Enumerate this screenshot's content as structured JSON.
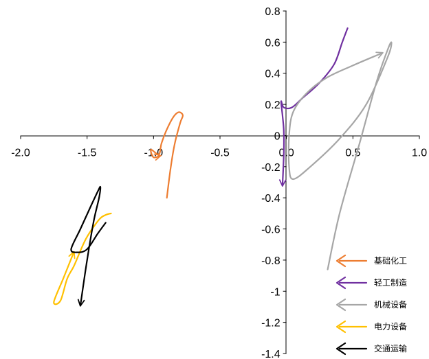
{
  "chart_data": {
    "type": "line",
    "xlim": [
      -2.0,
      1.0
    ],
    "ylim": [
      -1.4,
      0.8
    ],
    "x_ticks": [
      "-2.0",
      "-1.5",
      "-1.0",
      "-0.5",
      "0.0",
      "0.5",
      "1.0"
    ],
    "y_ticks": [
      "0.8",
      "0.6",
      "0.4",
      "0.2",
      "0",
      "-0.2",
      "-0.4",
      "-0.6",
      "-0.8",
      "-1",
      "-1.2",
      "-1.4"
    ],
    "grid": false,
    "legend_position": "bottom-right",
    "series": [
      {
        "name": "基础化工",
        "color": "#ED7D31",
        "points": [
          [
            -0.9,
            -0.4
          ],
          [
            -0.87,
            -0.2
          ],
          [
            -0.84,
            -0.05
          ],
          [
            -0.8,
            0.08
          ],
          [
            -0.78,
            0.13
          ],
          [
            -0.81,
            0.15
          ],
          [
            -0.85,
            0.12
          ],
          [
            -0.9,
            0.04
          ],
          [
            -0.94,
            -0.05
          ],
          [
            -0.96,
            -0.12
          ],
          [
            -1.02,
            -0.09
          ],
          [
            -1.0,
            -0.14
          ],
          [
            -0.95,
            -0.13
          ]
        ]
      },
      {
        "name": "轻工制造",
        "color": "#7030A0",
        "points": [
          [
            0.46,
            0.69
          ],
          [
            0.42,
            0.6
          ],
          [
            0.36,
            0.46
          ],
          [
            0.25,
            0.34
          ],
          [
            0.12,
            0.24
          ],
          [
            0.04,
            0.18
          ],
          [
            -0.02,
            0.18
          ],
          [
            -0.04,
            0.22
          ],
          [
            -0.03,
            0.13
          ],
          [
            -0.02,
            0.03
          ],
          [
            -0.02,
            -0.12
          ],
          [
            -0.03,
            -0.32
          ]
        ]
      },
      {
        "name": "机械设备",
        "color": "#A6A6A6",
        "points": [
          [
            0.31,
            -0.86
          ],
          [
            0.4,
            -0.5
          ],
          [
            0.55,
            -0.05
          ],
          [
            0.68,
            0.35
          ],
          [
            0.77,
            0.57
          ],
          [
            0.79,
            0.59
          ],
          [
            0.76,
            0.5
          ],
          [
            0.6,
            0.2
          ],
          [
            0.4,
            -0.02
          ],
          [
            0.18,
            -0.2
          ],
          [
            0.05,
            -0.28
          ],
          [
            0.02,
            -0.2
          ],
          [
            0.02,
            0.0
          ],
          [
            0.05,
            0.15
          ],
          [
            0.15,
            0.27
          ],
          [
            0.3,
            0.37
          ],
          [
            0.5,
            0.45
          ],
          [
            0.72,
            0.53
          ]
        ]
      },
      {
        "name": "电力设备",
        "color": "#FFC000",
        "points": [
          [
            -1.32,
            -0.5
          ],
          [
            -1.36,
            -0.51
          ],
          [
            -1.41,
            -0.54
          ],
          [
            -1.5,
            -0.65
          ],
          [
            -1.55,
            -0.74
          ],
          [
            -1.6,
            -0.84
          ],
          [
            -1.65,
            -0.92
          ],
          [
            -1.7,
            -1.06
          ],
          [
            -1.75,
            -1.07
          ],
          [
            -1.68,
            -0.92
          ],
          [
            -1.6,
            -0.75
          ]
        ]
      },
      {
        "name": "交通运输",
        "color": "#000000",
        "points": [
          [
            -1.36,
            -0.56
          ],
          [
            -1.42,
            -0.63
          ],
          [
            -1.5,
            -0.73
          ],
          [
            -1.57,
            -0.75
          ],
          [
            -1.62,
            -0.73
          ],
          [
            -1.55,
            -0.6
          ],
          [
            -1.47,
            -0.45
          ],
          [
            -1.42,
            -0.36
          ],
          [
            -1.4,
            -0.33
          ],
          [
            -1.41,
            -0.4
          ],
          [
            -1.45,
            -0.55
          ],
          [
            -1.5,
            -0.8
          ],
          [
            -1.55,
            -1.09
          ]
        ]
      }
    ]
  }
}
